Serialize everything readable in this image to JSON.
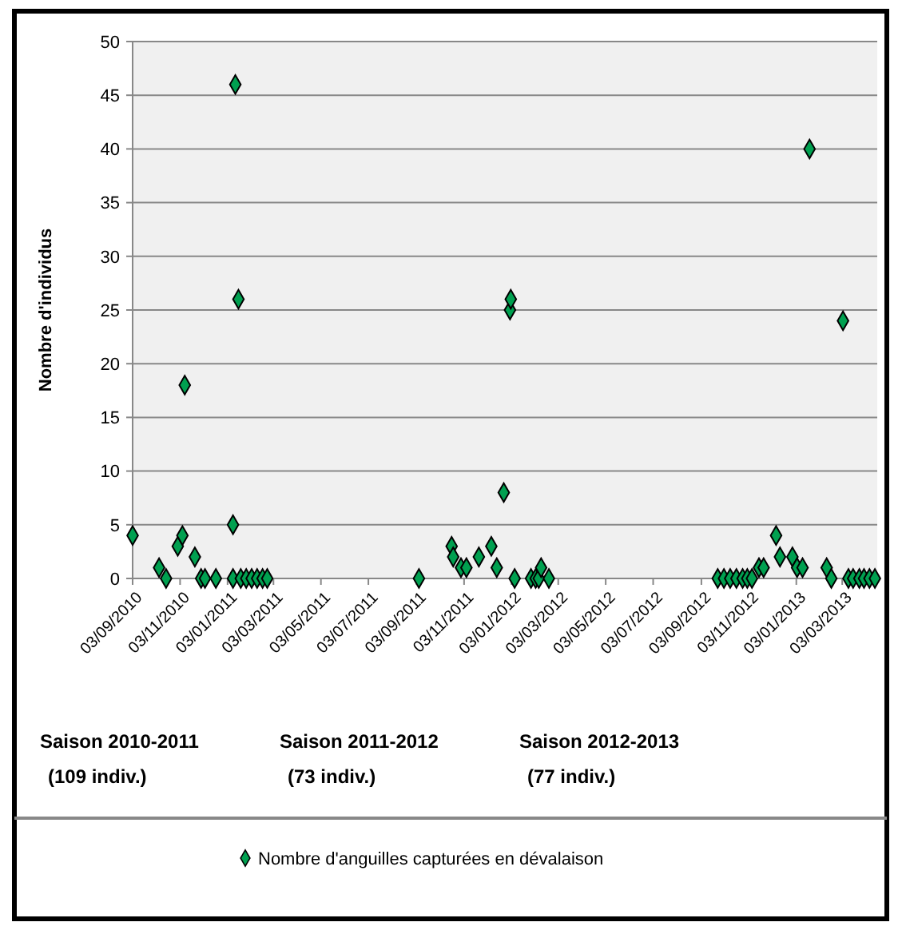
{
  "chart_data": {
    "type": "scatter",
    "ylabel": "Nombre d'individus",
    "annotations": [
      "Saison 2010-2011\n(109 indiv.)",
      "Saison 2011-2012\n(73 indiv.)",
      "Saison  2012-2013\n(77 indiv.)"
    ],
    "xlim": [
      "2010-09-03",
      "2013-04-17"
    ],
    "xticks": [
      {
        "value": "2010-09-03",
        "label": "03/09/2010"
      },
      {
        "value": "2010-11-03",
        "label": "03/11/2010"
      },
      {
        "value": "2011-01-03",
        "label": "03/01/2011"
      },
      {
        "value": "2011-03-03",
        "label": "03/03/2011"
      },
      {
        "value": "2011-05-03",
        "label": "03/05/2011"
      },
      {
        "value": "2011-07-03",
        "label": "03/07/2011"
      },
      {
        "value": "2011-09-03",
        "label": "03/09/2011"
      },
      {
        "value": "2011-11-03",
        "label": "03/11/2011"
      },
      {
        "value": "2012-01-03",
        "label": "03/01/2012"
      },
      {
        "value": "2012-03-03",
        "label": "03/03/2012"
      },
      {
        "value": "2012-05-03",
        "label": "03/05/2012"
      },
      {
        "value": "2012-07-03",
        "label": "03/07/2012"
      },
      {
        "value": "2012-09-03",
        "label": "03/09/2012"
      },
      {
        "value": "2012-11-03",
        "label": "03/11/2012"
      },
      {
        "value": "2013-01-03",
        "label": "03/01/2013"
      },
      {
        "value": "2013-03-03",
        "label": "03/03/2013"
      }
    ],
    "ylim": [
      0,
      50
    ],
    "yticks": [
      0,
      5,
      10,
      15,
      20,
      25,
      30,
      35,
      40,
      45,
      50
    ],
    "grid": "y",
    "legend": "bottom",
    "marker": "diamond",
    "series": [
      {
        "name": "Nombre d'anguilles capturées en dévalaison",
        "color": "#00a050",
        "x": [
          "2010-09-03",
          "2010-10-07",
          "2010-10-16",
          "2010-10-31",
          "2010-11-06",
          "2010-11-09",
          "2010-11-22",
          "2010-11-30",
          "2010-12-05",
          "2010-12-19",
          "2011-01-10",
          "2011-01-10",
          "2011-01-13",
          "2011-01-17",
          "2011-01-20",
          "2011-01-27",
          "2011-02-03",
          "2011-02-10",
          "2011-02-17",
          "2011-02-23",
          "2011-09-06",
          "2011-10-18",
          "2011-10-20",
          "2011-10-30",
          "2011-11-06",
          "2011-11-22",
          "2011-12-08",
          "2011-12-15",
          "2011-12-24",
          "2012-01-01",
          "2012-01-02",
          "2012-01-07",
          "2012-01-28",
          "2012-02-03",
          "2012-02-07",
          "2012-02-10",
          "2012-02-20",
          "2012-09-24",
          "2012-10-02",
          "2012-10-10",
          "2012-10-18",
          "2012-10-26",
          "2012-11-01",
          "2012-11-07",
          "2012-11-16",
          "2012-11-22",
          "2012-12-08",
          "2012-12-13",
          "2012-12-29",
          "2013-01-04",
          "2013-01-11",
          "2013-01-20",
          "2013-02-11",
          "2013-02-17",
          "2013-03-04",
          "2013-03-11",
          "2013-03-17",
          "2013-03-25",
          "2013-03-31",
          "2013-04-07",
          "2013-04-14"
        ],
        "values": [
          4,
          1,
          0,
          3,
          4,
          18,
          2,
          0,
          0,
          0,
          5,
          0,
          46,
          26,
          0,
          0,
          0,
          0,
          0,
          0,
          0,
          3,
          2,
          1,
          1,
          2,
          3,
          1,
          8,
          25,
          26,
          0,
          0,
          0,
          0,
          1,
          0,
          0,
          0,
          0,
          0,
          0,
          0,
          0,
          1,
          1,
          4,
          2,
          2,
          1,
          1,
          40,
          1,
          0,
          24,
          0,
          0,
          0,
          0,
          0,
          0
        ]
      }
    ]
  }
}
